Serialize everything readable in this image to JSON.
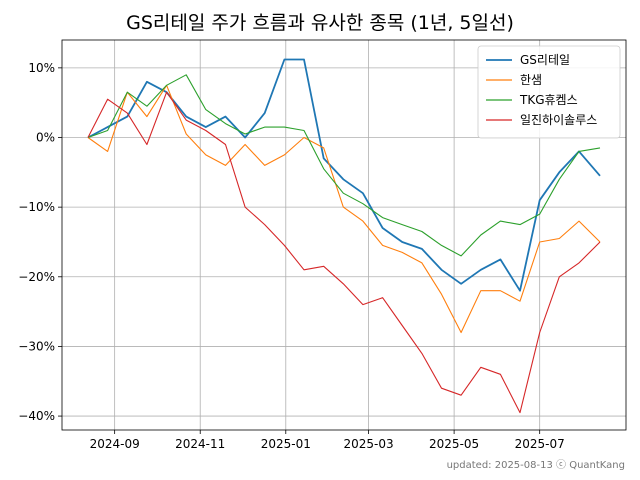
{
  "chart_data": {
    "type": "line",
    "title": "GS리테일 주가 흐름과 유사한 종목 (1년, 5일선)",
    "xlabel": "",
    "ylabel": "",
    "x_ticks": [
      "2024-09",
      "2024-11",
      "2025-01",
      "2025-03",
      "2025-05",
      "2025-07"
    ],
    "y_ticks": [
      "10%",
      "0%",
      "−10%",
      "−20%",
      "−30%",
      "−40%"
    ],
    "y_tick_values": [
      10,
      0,
      -10,
      -20,
      -30,
      -40
    ],
    "ylim": [
      -42,
      14
    ],
    "grid": true,
    "legend": "top-right",
    "x": [
      "2024-08-13",
      "2024-08-27",
      "2024-09-10",
      "2024-09-24",
      "2024-10-08",
      "2024-10-22",
      "2024-11-05",
      "2024-11-19",
      "2024-12-03",
      "2024-12-17",
      "2024-12-31",
      "2025-01-14",
      "2025-01-28",
      "2025-02-11",
      "2025-02-25",
      "2025-03-11",
      "2025-03-25",
      "2025-04-08",
      "2025-04-22",
      "2025-05-06",
      "2025-05-20",
      "2025-06-03",
      "2025-06-17",
      "2025-07-01",
      "2025-07-15",
      "2025-07-29",
      "2025-08-13"
    ],
    "series": [
      {
        "name": "GS리테일",
        "color": "#1f77b4",
        "values": [
          0,
          1.5,
          3,
          8,
          6.5,
          3,
          1.5,
          3,
          0,
          3.5,
          11.2,
          11.2,
          -3,
          -6,
          -8,
          -13,
          -15,
          -16,
          -19,
          -21,
          -19,
          -17.5,
          -22,
          -9,
          -5,
          -2,
          -5.5
        ]
      },
      {
        "name": "한샘",
        "color": "#ff7f0e",
        "values": [
          0,
          -2,
          6.5,
          3,
          7.5,
          0.5,
          -2.5,
          -4,
          -1,
          -4,
          -2.5,
          0,
          -1.5,
          -10,
          -12,
          -15.5,
          -16.5,
          -18,
          -22.5,
          -28,
          -22,
          -22,
          -23.5,
          -15,
          -14.5,
          -12,
          -15
        ]
      },
      {
        "name": "TKG휴켐스",
        "color": "#2ca02c",
        "values": [
          0,
          1,
          6.5,
          4.5,
          7.5,
          9,
          4,
          2,
          0.5,
          1.5,
          1.5,
          1,
          -4.5,
          -8,
          -9.5,
          -11.5,
          -12.5,
          -13.5,
          -15.5,
          -17,
          -14,
          -12,
          -12.5,
          -11,
          -6,
          -2,
          -1.5
        ]
      },
      {
        "name": "일진하이솔루스",
        "color": "#d62728",
        "values": [
          0,
          5.5,
          3.5,
          -1,
          6.5,
          2.5,
          1,
          -1,
          -10,
          -12.5,
          -15.5,
          -19,
          -18.5,
          -21,
          -24,
          -23,
          -27,
          -31,
          -36,
          -37,
          -33,
          -34,
          -39.5,
          -28,
          -20,
          -18,
          -15
        ]
      }
    ]
  },
  "footer": {
    "updated": "updated: 2025-08-13 ⓒ QuantKang"
  }
}
